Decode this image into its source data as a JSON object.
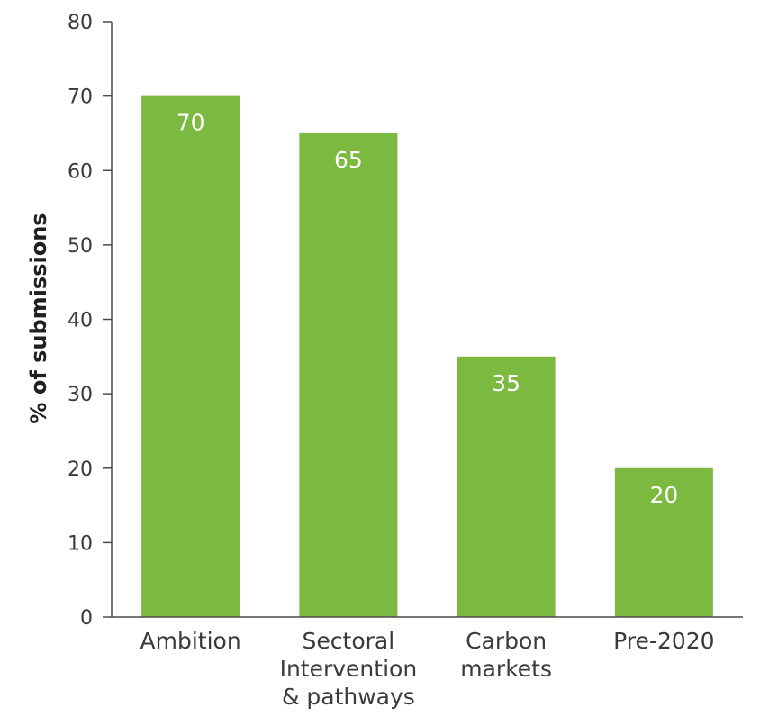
{
  "chart_data": {
    "type": "bar",
    "categories": [
      [
        "Ambition"
      ],
      [
        "Sectoral",
        "Intervention",
        "& pathways"
      ],
      [
        "Carbon",
        "markets"
      ],
      [
        "Pre-2020"
      ]
    ],
    "values": [
      70,
      65,
      35,
      20
    ],
    "data_labels": [
      "70",
      "65",
      "35",
      "20"
    ],
    "title": "",
    "xlabel": "",
    "ylabel": "% of submissions",
    "ylim": [
      0,
      80
    ],
    "yticks": [
      0,
      10,
      20,
      30,
      40,
      50,
      60,
      70,
      80
    ],
    "grid": false,
    "legend": "none",
    "colors": {
      "bar": "#7cb940",
      "axis": "#4a4a4a"
    }
  }
}
